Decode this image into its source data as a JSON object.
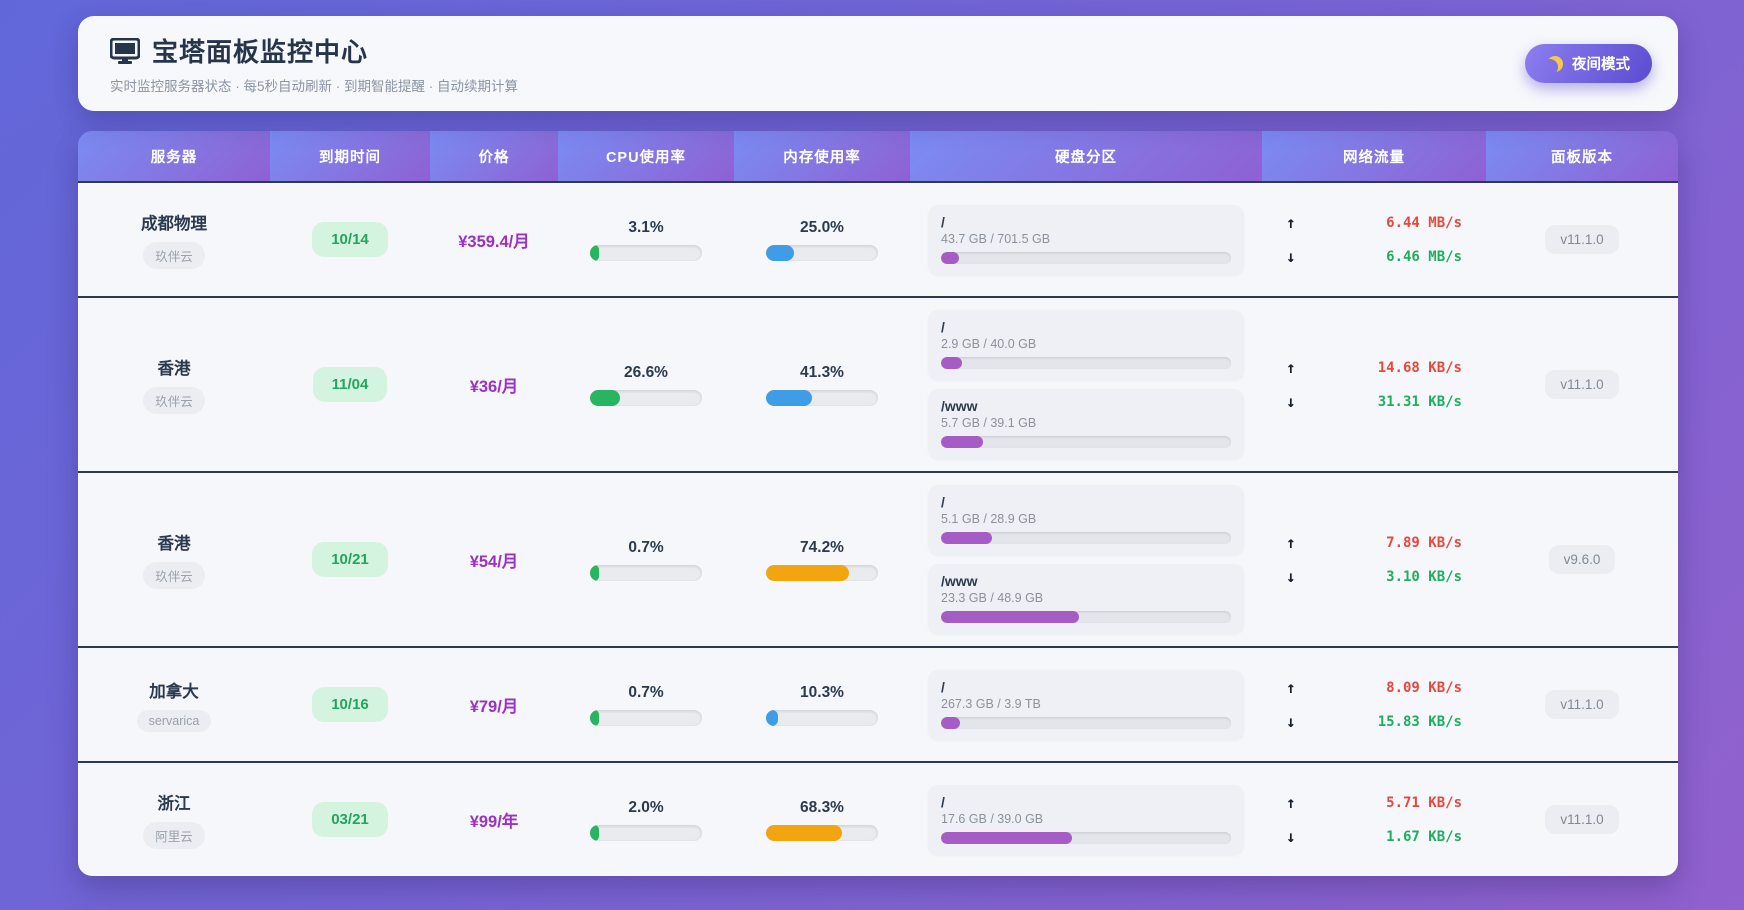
{
  "header": {
    "title": "宝塔面板监控中心",
    "subtitle": "实时监控服务器状态 · 每5秒自动刷新 · 到期智能提醒 · 自动续期计算",
    "night_mode_label": "夜间模式"
  },
  "colors": {
    "cpu_green": "#27b561",
    "mem_blue": "#3f9de8",
    "mem_orange": "#f2a50f",
    "disk_purple": "#a55cc5",
    "net_up_red": "#e8483c",
    "net_down_green": "#1fae5e",
    "price_purple": "#9d2fc5",
    "header_gradient": [
      "#7b8cf3",
      "#8e61d3"
    ]
  },
  "table": {
    "columns": [
      "服务器",
      "到期时间",
      "价格",
      "CPU使用率",
      "内存使用率",
      "硬盘分区",
      "网络流量",
      "面板版本"
    ],
    "rows": [
      {
        "name": "成都物理",
        "provider": "玖伴云",
        "expiry": "10/14",
        "price": "¥359.4/月",
        "cpu": {
          "label": "3.1%",
          "percent": 3.1,
          "color": "#27b561"
        },
        "mem": {
          "label": "25.0%",
          "percent": 25.0,
          "color": "#3f9de8"
        },
        "disks": [
          {
            "mount": "/",
            "usage": "43.7 GB / 701.5 GB",
            "percent": 6.2,
            "color": "#a55cc5"
          }
        ],
        "net": {
          "up": "6.44 MB/s",
          "down": "6.46 MB/s",
          "up_arrow": "↑",
          "down_arrow": "↓"
        },
        "version": "v11.1.0"
      },
      {
        "name": "香港",
        "provider": "玖伴云",
        "expiry": "11/04",
        "price": "¥36/月",
        "cpu": {
          "label": "26.6%",
          "percent": 26.6,
          "color": "#27b561"
        },
        "mem": {
          "label": "41.3%",
          "percent": 41.3,
          "color": "#3f9de8"
        },
        "disks": [
          {
            "mount": "/",
            "usage": "2.9 GB / 40.0 GB",
            "percent": 7.3,
            "color": "#a55cc5"
          },
          {
            "mount": "/www",
            "usage": "5.7 GB / 39.1 GB",
            "percent": 14.6,
            "color": "#a55cc5"
          }
        ],
        "net": {
          "up": "14.68 KB/s",
          "down": "31.31 KB/s",
          "up_arrow": "↑",
          "down_arrow": "↓"
        },
        "version": "v11.1.0"
      },
      {
        "name": "香港",
        "provider": "玖伴云",
        "expiry": "10/21",
        "price": "¥54/月",
        "cpu": {
          "label": "0.7%",
          "percent": 0.7,
          "color": "#27b561"
        },
        "mem": {
          "label": "74.2%",
          "percent": 74.2,
          "color": "#f2a50f"
        },
        "disks": [
          {
            "mount": "/",
            "usage": "5.1 GB / 28.9 GB",
            "percent": 17.6,
            "color": "#a55cc5"
          },
          {
            "mount": "/www",
            "usage": "23.3 GB / 48.9 GB",
            "percent": 47.6,
            "color": "#a55cc5"
          }
        ],
        "net": {
          "up": "7.89 KB/s",
          "down": "3.10 KB/s",
          "up_arrow": "↑",
          "down_arrow": "↓"
        },
        "version": "v9.6.0"
      },
      {
        "name": "加拿大",
        "provider": "servarica",
        "expiry": "10/16",
        "price": "¥79/月",
        "cpu": {
          "label": "0.7%",
          "percent": 0.7,
          "color": "#27b561"
        },
        "mem": {
          "label": "10.3%",
          "percent": 10.3,
          "color": "#3f9de8"
        },
        "disks": [
          {
            "mount": "/",
            "usage": "267.3 GB / 3.9 TB",
            "percent": 6.7,
            "color": "#a55cc5"
          }
        ],
        "net": {
          "up": "8.09 KB/s",
          "down": "15.83 KB/s",
          "up_arrow": "↑",
          "down_arrow": "↓"
        },
        "version": "v11.1.0"
      },
      {
        "name": "浙江",
        "provider": "阿里云",
        "expiry": "03/21",
        "price": "¥99/年",
        "cpu": {
          "label": "2.0%",
          "percent": 2.0,
          "color": "#27b561"
        },
        "mem": {
          "label": "68.3%",
          "percent": 68.3,
          "color": "#f2a50f"
        },
        "disks": [
          {
            "mount": "/",
            "usage": "17.6 GB / 39.0 GB",
            "percent": 45.1,
            "color": "#a55cc5"
          }
        ],
        "net": {
          "up": "5.71 KB/s",
          "down": "1.67 KB/s",
          "up_arrow": "↑",
          "down_arrow": "↓"
        },
        "version": "v11.1.0"
      }
    ]
  }
}
